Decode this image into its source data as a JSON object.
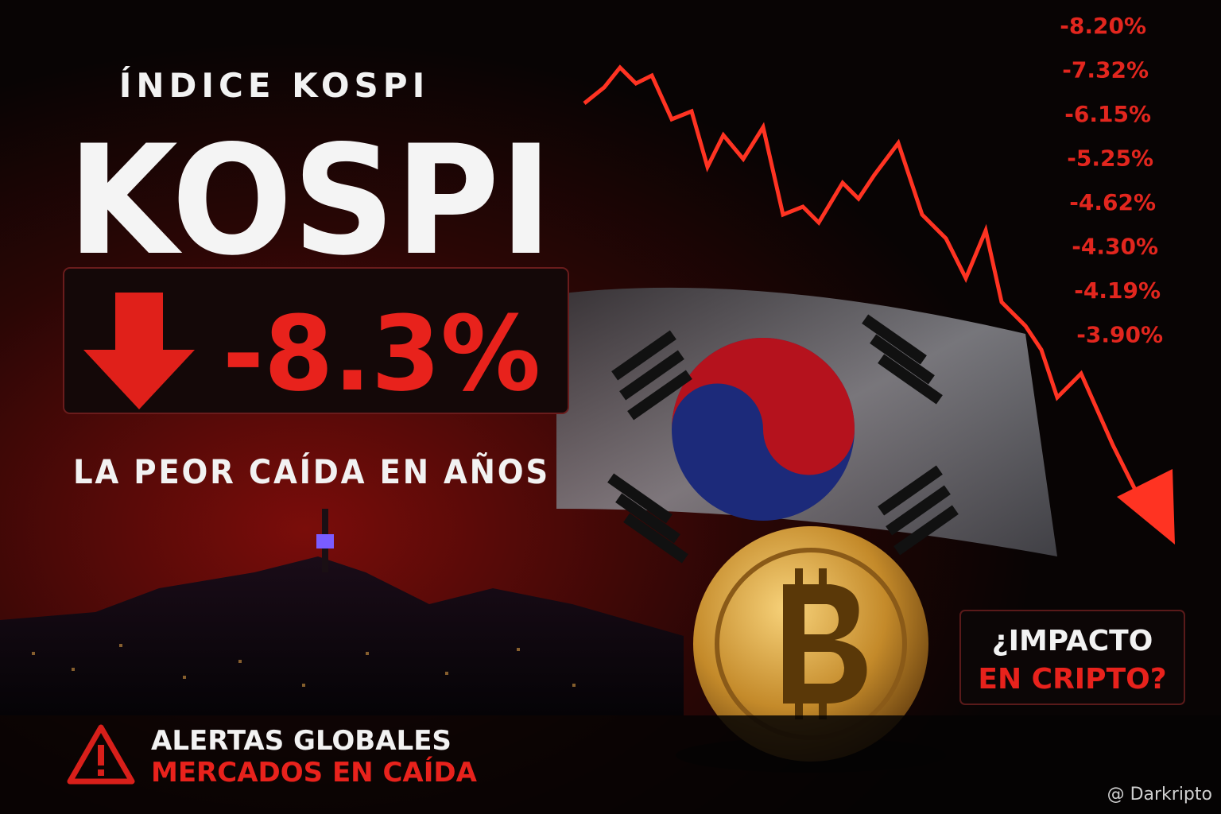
{
  "header": {
    "kicker": "ÍNDICE KOSPI",
    "title": "KOSPI"
  },
  "drop": {
    "value_label": "-8.3%",
    "caption": "LA PEOR CAÍDA EN AÑOS"
  },
  "ticker": [
    "-8.20%",
    "-7.32%",
    "-6.15%",
    "-5.25%",
    "-4.62%",
    "-4.30%",
    "-4.19%",
    "-3.90%"
  ],
  "alert": {
    "line1": "ALERTAS GLOBALES",
    "line2": "MERCADOS EN CAÍDA"
  },
  "question": {
    "line1": "¿IMPACTO",
    "line2": "EN CRIPTO?"
  },
  "watermark": "@ Darkripto"
}
